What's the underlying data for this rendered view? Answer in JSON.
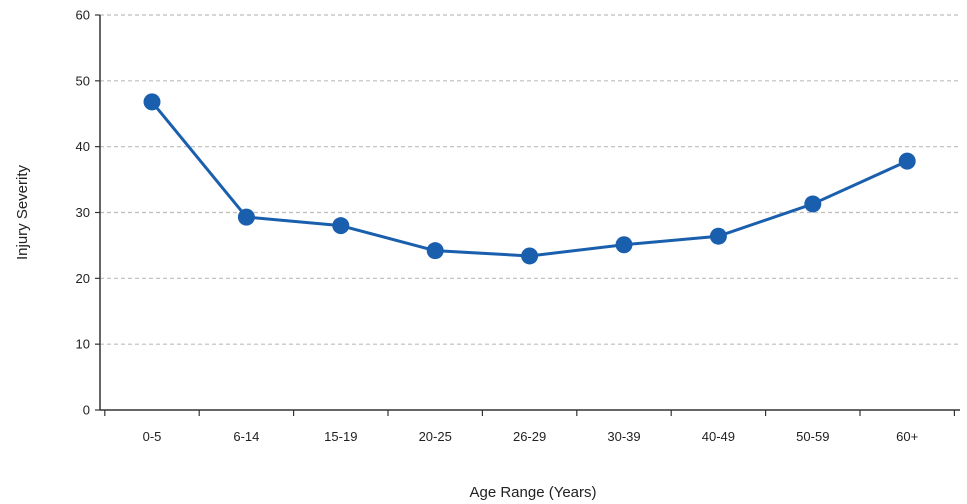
{
  "chart_data": {
    "type": "line",
    "title": "",
    "xlabel": "Age Range (Years)",
    "ylabel": "Injury Severity",
    "categories": [
      "0-5",
      "6-14",
      "15-19",
      "20-25",
      "26-29",
      "30-39",
      "40-49",
      "50-59",
      "60+"
    ],
    "series": [
      {
        "values": [
          46.8,
          29.3,
          28.0,
          24.2,
          23.4,
          25.1,
          26.4,
          31.3,
          37.8
        ]
      }
    ],
    "ylim": [
      0,
      60
    ],
    "yticks": [
      0,
      10,
      20,
      30,
      40,
      50,
      60
    ],
    "grid": "horizontal-dashed",
    "legend": "none",
    "colors": {
      "line": "#1a5fad",
      "grid": "#bdbdbd",
      "axis": "#333333"
    }
  }
}
